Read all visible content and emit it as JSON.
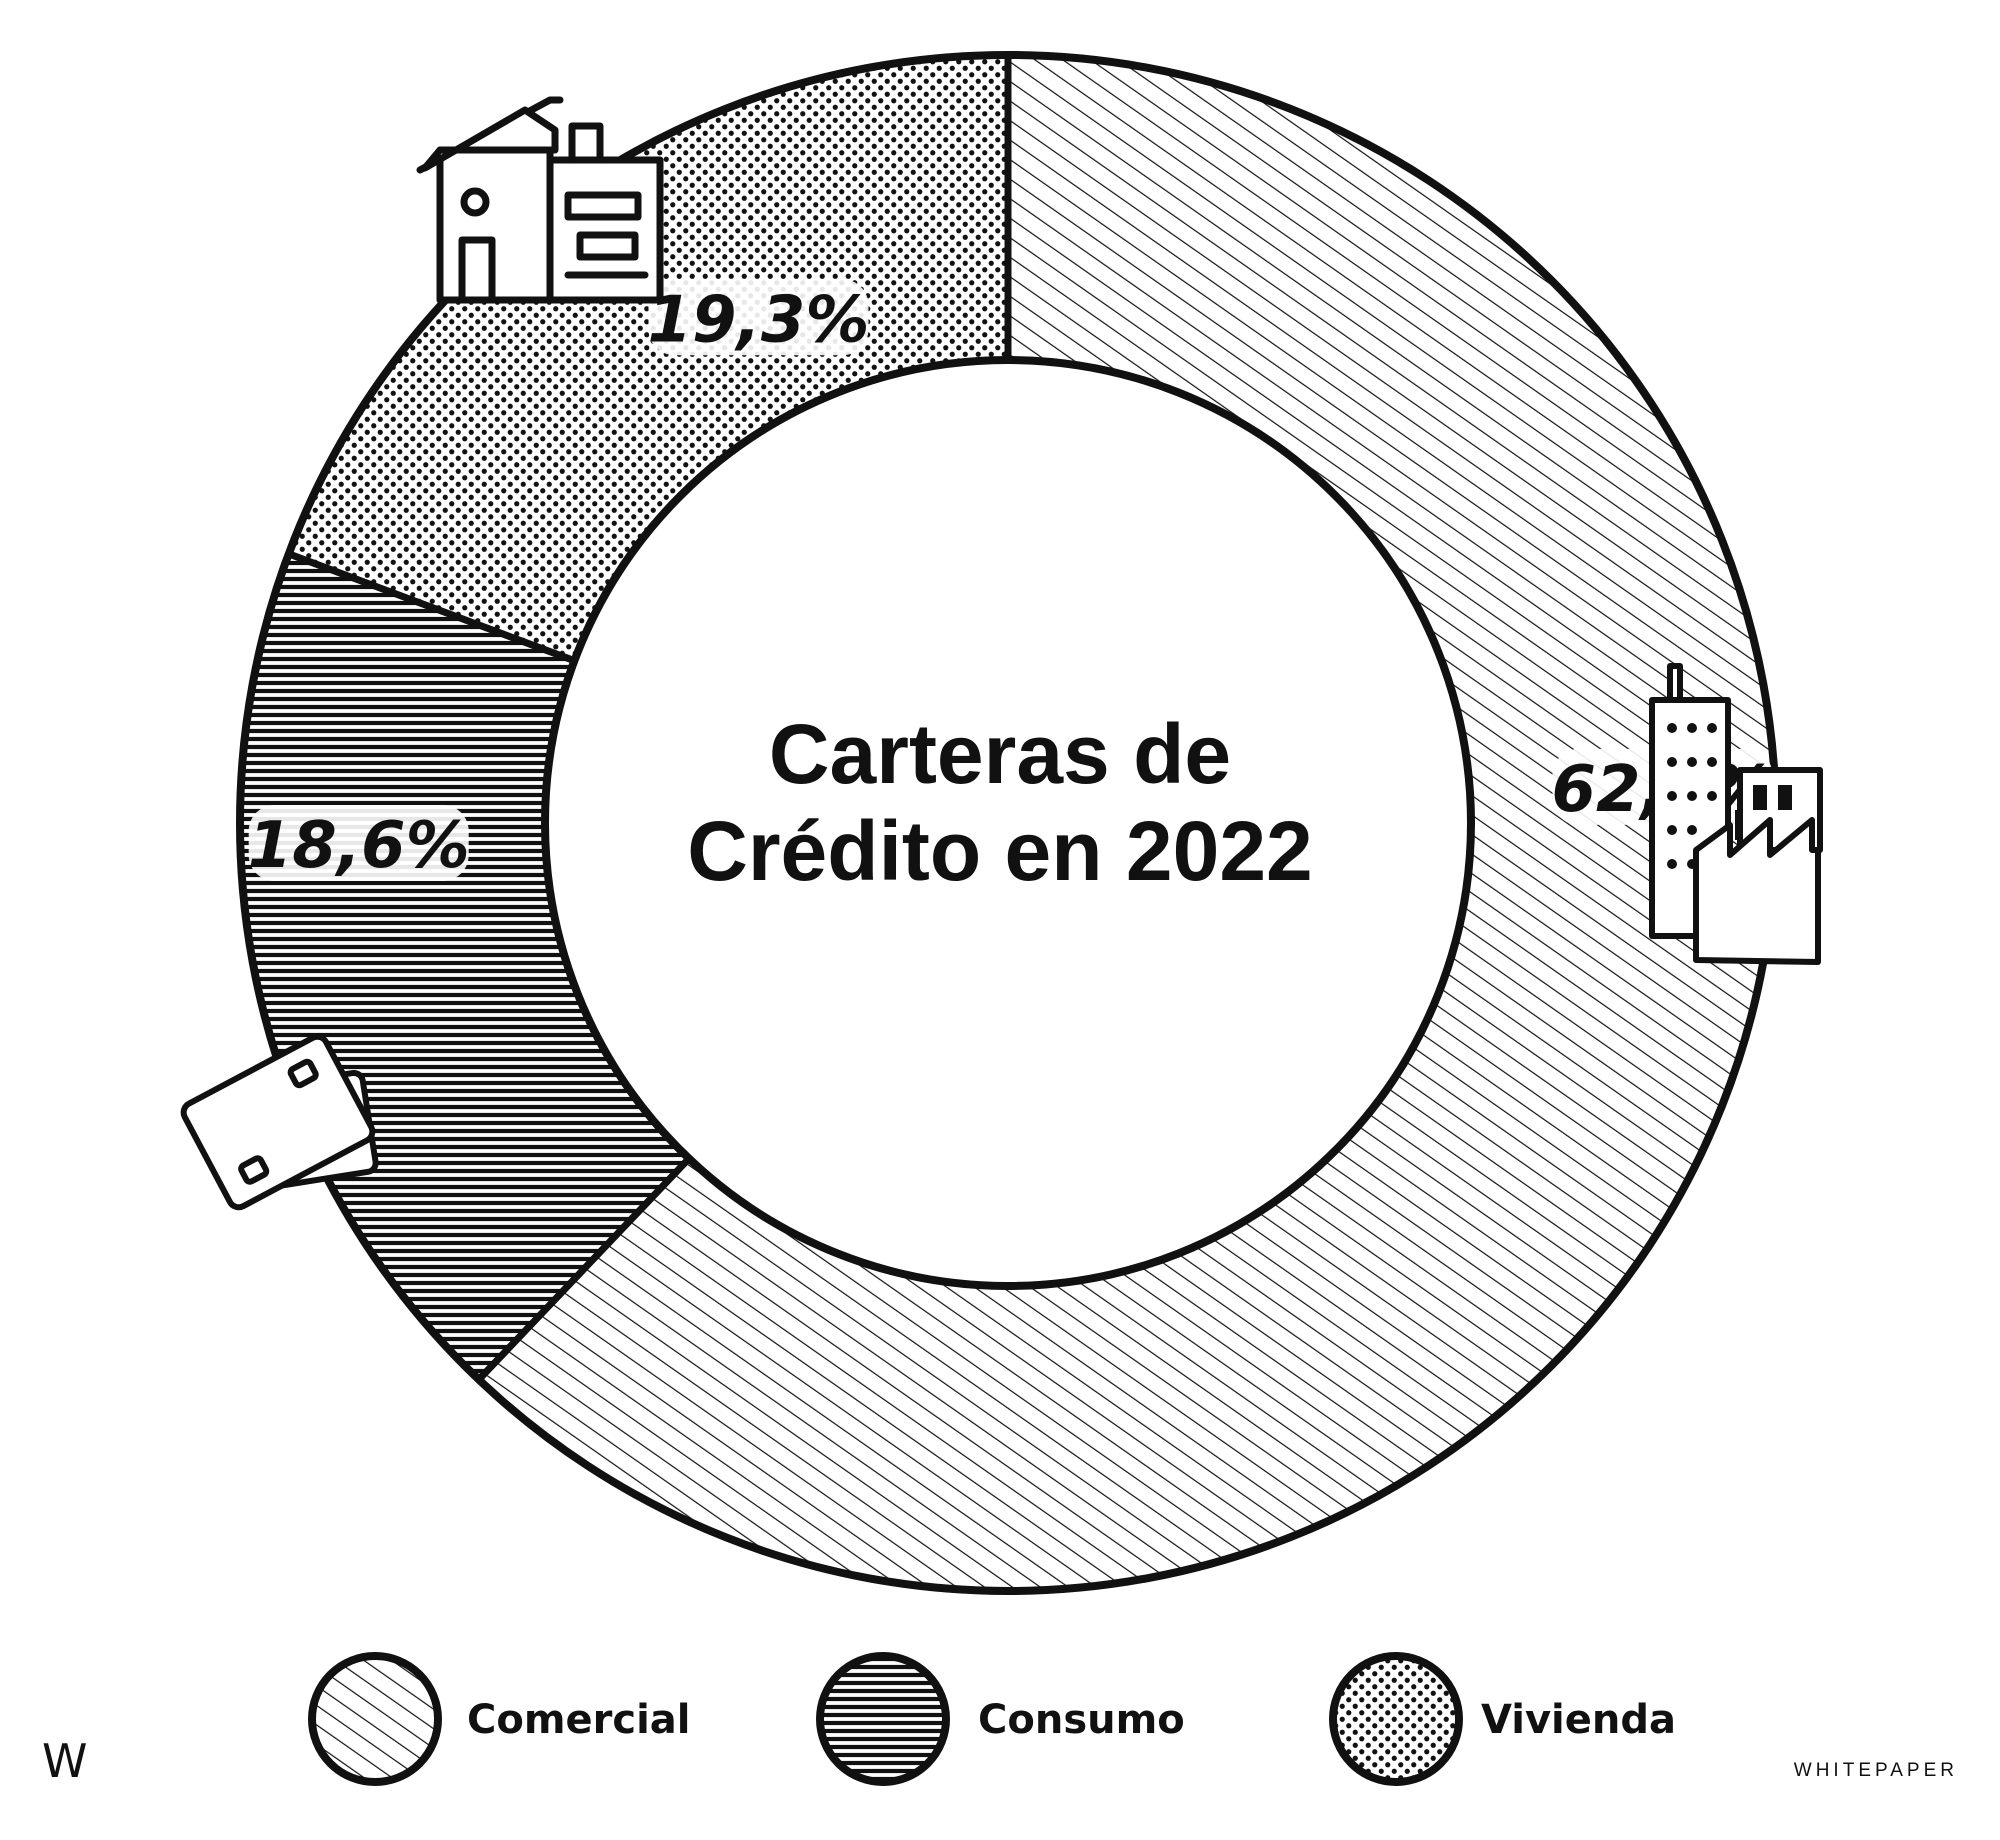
{
  "chart_data": {
    "type": "pie",
    "title": "Carteras de Crédito en 2022",
    "title_lines": [
      "Carteras de",
      "Crédito en 2022"
    ],
    "categories": [
      "Comercial",
      "Consumo",
      "Vivienda"
    ],
    "values": [
      62.1,
      18.6,
      19.3
    ],
    "data_labels": [
      "62,1%",
      "18,6%",
      "19,3%"
    ],
    "patterns": [
      "diagonal-hatch",
      "horizontal-lines",
      "dots"
    ],
    "icons": [
      "factory-buildings-icon",
      "credit-cards-icon",
      "house-icon"
    ],
    "legend_placement": "bottom",
    "donut": true
  },
  "legend": {
    "items": [
      {
        "label": "Comercial",
        "pattern": "diagonal-hatch"
      },
      {
        "label": "Consumo",
        "pattern": "horizontal-lines"
      },
      {
        "label": "Vivienda",
        "pattern": "dots"
      }
    ]
  },
  "footer": {
    "mark": "W",
    "brand": "WHITEPAPER"
  },
  "colors": {
    "ink": "#111111",
    "background": "#ffffff"
  }
}
